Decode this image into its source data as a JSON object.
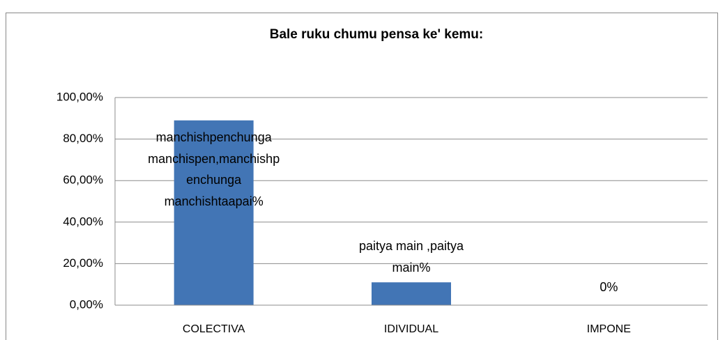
{
  "chart_data": {
    "type": "bar",
    "title": "Bale ruku chumu pensa ke' kemu:",
    "categories": [
      "COLECTIVA",
      "IDIVIDUAL",
      "IMPONE"
    ],
    "values": [
      89,
      11,
      0
    ],
    "value_labels": [
      "manchishpenchunga manchispen,manchishpenchunga manchishtaapai%",
      "paitya main ,paitya main%",
      "0%"
    ],
    "color": "#4275b5",
    "ylim": [
      0,
      100
    ],
    "yticks": [
      {
        "value": 0,
        "label": "0,00%"
      },
      {
        "value": 20,
        "label": "20,00%"
      },
      {
        "value": 40,
        "label": "40,00%"
      },
      {
        "value": 60,
        "label": "60,00%"
      },
      {
        "value": 80,
        "label": "80,00%"
      },
      {
        "value": 100,
        "label": "100,00%"
      }
    ],
    "grid": true
  }
}
